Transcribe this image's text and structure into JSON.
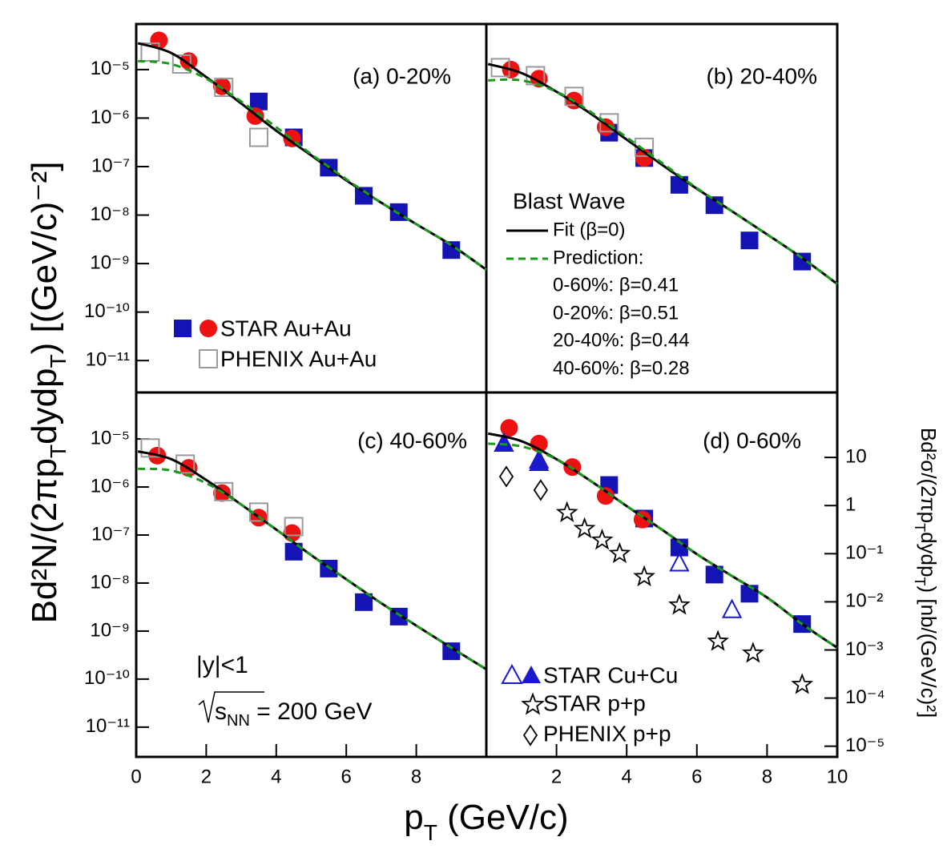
{
  "chart_data": [
    {
      "type": "scatter",
      "label": "(a) 0-20%",
      "xlim": [
        0,
        10
      ],
      "ylim": [
        2.2e-12,
        8.7e-05
      ],
      "log_y": true,
      "yticks": [
        {
          "value": 1e-05,
          "label": "10⁻⁵"
        },
        {
          "value": 1e-06,
          "label": "10⁻⁶"
        },
        {
          "value": 1e-07,
          "label": "10⁻⁷"
        },
        {
          "value": 1e-08,
          "label": "10⁻⁸"
        },
        {
          "value": 1e-09,
          "label": "10⁻⁹"
        },
        {
          "value": 1e-10,
          "label": "10⁻¹⁰"
        },
        {
          "value": 1e-11,
          "label": "10⁻¹¹"
        }
      ],
      "ylabel": [
        "Bd²N/(2πp",
        "T",
        "dydp",
        "T",
        ") [(GeV/c)⁻²]"
      ],
      "series": [
        {
          "color": "#1414b4",
          "marker": "square",
          "x": [
            3.5,
            4.5,
            5.5,
            6.5,
            7.5,
            9.0
          ],
          "values": [
            2.2e-06,
            4e-07,
            9.5e-08,
            2.5e-08,
            1.15e-08,
            1.9e-09
          ]
        },
        {
          "name": "STAR Au+Au",
          "color": "#ee1111",
          "marker": "circle",
          "x": [
            0.65,
            1.5,
            2.45,
            3.4,
            4.45
          ],
          "values": [
            4e-05,
            1.5e-05,
            4.5e-06,
            1.1e-06,
            3.8e-07
          ]
        },
        {
          "name": "PHENIX Au+Au",
          "color": "#999999",
          "marker": "open-square",
          "x": [
            0.4,
            1.3,
            2.5,
            3.5
          ],
          "values": [
            2.3e-05,
            1.3e-05,
            4.3e-06,
            4e-07
          ]
        },
        {
          "color": "#000000",
          "marker": "line",
          "x": [
            0.05,
            1,
            2,
            3,
            4,
            5,
            6,
            7,
            8,
            9,
            10
          ],
          "values": [
            3.5e-05,
            2.2e-05,
            7e-06,
            2e-06,
            5.5e-07,
            1.7e-07,
            5.2e-08,
            1.8e-08,
            6.5e-09,
            2.4e-09,
            7.5e-10
          ]
        },
        {
          "color": "#1a9a1a",
          "marker": "dashed",
          "x": [
            0.05,
            1,
            2,
            3,
            4,
            5,
            6,
            7,
            8,
            9,
            10
          ],
          "values": [
            1.5e-05,
            1.3e-05,
            6.5e-06,
            2.2e-06,
            6.5e-07,
            1.8e-07,
            5.5e-08,
            1.8e-08,
            6.5e-09,
            2.4e-09,
            7.5e-10
          ]
        }
      ]
    },
    {
      "type": "scatter",
      "label": "(b) 20-40%",
      "xlim": [
        0,
        10
      ],
      "ylim": [
        2.2e-12,
        8.7e-05
      ],
      "log_y": true,
      "legend_title": "Blast Wave",
      "notes": [
        "0-60%: β=0.41",
        "0-20%: β=0.51",
        "20-40%: β=0.44",
        "40-60%: β=0.28"
      ],
      "series": [
        {
          "color": "#1414b4",
          "marker": "square",
          "x": [
            3.5,
            4.5,
            5.5,
            6.5,
            7.5,
            9.0
          ],
          "values": [
            5e-07,
            1.5e-07,
            4.2e-08,
            1.6e-08,
            3e-09,
            1.1e-09
          ]
        },
        {
          "color": "#ee1111",
          "marker": "circle",
          "x": [
            0.7,
            1.5,
            2.5,
            3.4,
            4.5
          ],
          "values": [
            1e-05,
            6.5e-06,
            2.3e-06,
            6.5e-07,
            1.5e-07
          ]
        },
        {
          "color": "#999999",
          "marker": "open-square",
          "x": [
            0.4,
            1.4,
            2.5,
            3.5,
            4.5
          ],
          "values": [
            1.1e-05,
            7.5e-06,
            2.8e-06,
            8e-07,
            2.5e-07
          ]
        },
        {
          "name": "Fit (β=0)",
          "color": "#000000",
          "marker": "line",
          "x": [
            0.05,
            1,
            2,
            3,
            4,
            5,
            6,
            7,
            8,
            9,
            10
          ],
          "values": [
            1.3e-05,
            8.5e-06,
            3.5e-06,
            1.2e-06,
            3.6e-07,
            1.1e-07,
            3.5e-08,
            1.2e-08,
            4e-09,
            1.3e-09,
            3.8e-10
          ]
        },
        {
          "name": "Prediction:",
          "color": "#1a9a1a",
          "marker": "dashed",
          "x": [
            0.05,
            1,
            2,
            3,
            4,
            5,
            6,
            7,
            8,
            9,
            10
          ],
          "values": [
            6e-06,
            6e-06,
            3.5e-06,
            1.3e-06,
            4e-07,
            1.2e-07,
            3.6e-08,
            1.2e-08,
            4e-09,
            1.3e-09,
            3.8e-10
          ]
        }
      ]
    },
    {
      "type": "scatter",
      "label": "(c) 40-60%",
      "xlim": [
        0,
        10
      ],
      "ylim": [
        2.4e-12,
        9.3e-05
      ],
      "log_y": true,
      "xticks": [
        0,
        2,
        4,
        6,
        8
      ],
      "yticks": [
        {
          "value": 1e-05,
          "label": "10⁻⁵"
        },
        {
          "value": 1e-06,
          "label": "10⁻⁶"
        },
        {
          "value": 1e-07,
          "label": "10⁻⁷"
        },
        {
          "value": 1e-08,
          "label": "10⁻⁸"
        },
        {
          "value": 1e-09,
          "label": "10⁻⁹"
        },
        {
          "value": 1e-10,
          "label": "10⁻¹⁰"
        },
        {
          "value": 1e-11,
          "label": "10⁻¹¹"
        }
      ],
      "xlabel": [
        "p",
        "T",
        " (GeV/c)"
      ],
      "rapidity": "|y|<1",
      "energy": [
        "s",
        "NN",
        " = 200 GeV"
      ],
      "series": [
        {
          "color": "#1414b4",
          "marker": "square",
          "x": [
            4.5,
            5.5,
            6.5,
            7.5,
            9.0
          ],
          "values": [
            4.5e-08,
            2e-08,
            4e-09,
            2e-09,
            3.8e-10
          ]
        },
        {
          "color": "#ee1111",
          "marker": "circle",
          "x": [
            0.6,
            1.5,
            2.45,
            3.5,
            4.45
          ],
          "values": [
            4.5e-06,
            2.5e-06,
            7.5e-07,
            2.3e-07,
            1.1e-07
          ]
        },
        {
          "color": "#999999",
          "marker": "open-square",
          "x": [
            0.4,
            1.4,
            2.5,
            3.5,
            4.5
          ],
          "values": [
            6.5e-06,
            3e-06,
            8e-07,
            3e-07,
            1.5e-07
          ]
        },
        {
          "color": "#000000",
          "marker": "line",
          "x": [
            0.05,
            1,
            2,
            3,
            4,
            5,
            6,
            7,
            8,
            9,
            10
          ],
          "values": [
            5.5e-06,
            3.8e-06,
            1.4e-06,
            4.3e-07,
            1.3e-07,
            3.8e-08,
            1.2e-08,
            3.8e-09,
            1.3e-09,
            4.5e-10,
            1.6e-10
          ]
        },
        {
          "color": "#1a9a1a",
          "marker": "dashed",
          "x": [
            0.05,
            1,
            2,
            3,
            4,
            5,
            6,
            7,
            8,
            9,
            10
          ],
          "values": [
            2.4e-06,
            2.2e-06,
            1.2e-06,
            4.3e-07,
            1.3e-07,
            3.8e-08,
            1.2e-08,
            3.8e-09,
            1.3e-09,
            4.5e-10,
            1.6e-10
          ]
        }
      ]
    },
    {
      "type": "scatter",
      "label": "(d) 0-60%",
      "xlim": [
        0,
        10
      ],
      "ylim": [
        2.4e-12,
        9.3e-05
      ],
      "log_y": true,
      "xticks": [
        2,
        4,
        6,
        8,
        10
      ],
      "y2lim": [
        6e-06,
        224
      ],
      "y2ticks": [
        10,
        1,
        {
          "value": 0.1,
          "label": "10⁻¹"
        },
        {
          "value": 0.01,
          "label": "10⁻²"
        },
        {
          "value": 0.001,
          "label": "10⁻³"
        },
        {
          "value": 0.0001,
          "label": "10⁻⁴"
        },
        {
          "value": 1e-05,
          "label": "10⁻⁵"
        }
      ],
      "y2label": [
        "Bd²σ/(2πp",
        "T",
        "dydp",
        "T",
        ") [nb/(GeV/c)²]"
      ],
      "series": [
        {
          "color": "#1414b4",
          "marker": "square",
          "x": [
            3.5,
            4.5,
            5.5,
            6.5,
            7.5,
            9.0
          ],
          "values": [
            1.1e-06,
            2.2e-07,
            5.5e-08,
            1.5e-08,
            6e-09,
            1.4e-09
          ]
        },
        {
          "color": "#ee1111",
          "marker": "circle",
          "x": [
            0.65,
            1.5,
            2.45,
            3.4,
            4.45
          ],
          "values": [
            1.7e-05,
            8e-06,
            2.6e-06,
            6.5e-07,
            2.1e-07
          ]
        },
        {
          "color": "#1a1acc",
          "marker": "open-triangle",
          "axis": "y2",
          "x": [
            0.5,
            1.5,
            5.5,
            7.0
          ],
          "values": [
            20,
            9,
            0.065,
            0.007
          ]
        },
        {
          "name": "STAR Cu+Cu",
          "color": "#1a1acc",
          "marker": "triangle",
          "axis": "y2",
          "x": [
            0.5,
            1.5
          ],
          "values": [
            20,
            8
          ]
        },
        {
          "name": "STAR p+p",
          "color": "#000000",
          "marker": "star",
          "axis": "y2",
          "x": [
            2.3,
            2.8,
            3.3,
            3.8,
            4.5,
            5.5,
            6.6,
            7.6,
            9.0
          ],
          "values": [
            0.71,
            0.33,
            0.19,
            0.1,
            0.033,
            0.0085,
            0.0015,
            0.00085,
            0.00019
          ]
        },
        {
          "name": "PHENIX p+p",
          "color": "#000000",
          "marker": "diamond",
          "axis": "y2",
          "x": [
            0.57,
            1.55
          ],
          "values": [
            4,
            2.1
          ]
        },
        {
          "color": "#000000",
          "marker": "line",
          "x": [
            0.05,
            1,
            2,
            3,
            4,
            5,
            6,
            7,
            8,
            9,
            10
          ],
          "values": [
            1.3e-05,
            9e-06,
            3.8e-06,
            1.3e-06,
            4e-07,
            1.3e-07,
            4e-08,
            1.4e-08,
            5e-09,
            1.4e-09,
            4.5e-10
          ]
        },
        {
          "color": "#1a9a1a",
          "marker": "dashed",
          "x": [
            0.05,
            1,
            2,
            3,
            4,
            5,
            6,
            7,
            8,
            9,
            10
          ],
          "values": [
            8e-06,
            7e-06,
            3.8e-06,
            1.3e-06,
            4e-07,
            1.3e-07,
            4e-08,
            1.4e-08,
            5e-09,
            1.4e-09,
            4.5e-10
          ]
        }
      ]
    }
  ]
}
